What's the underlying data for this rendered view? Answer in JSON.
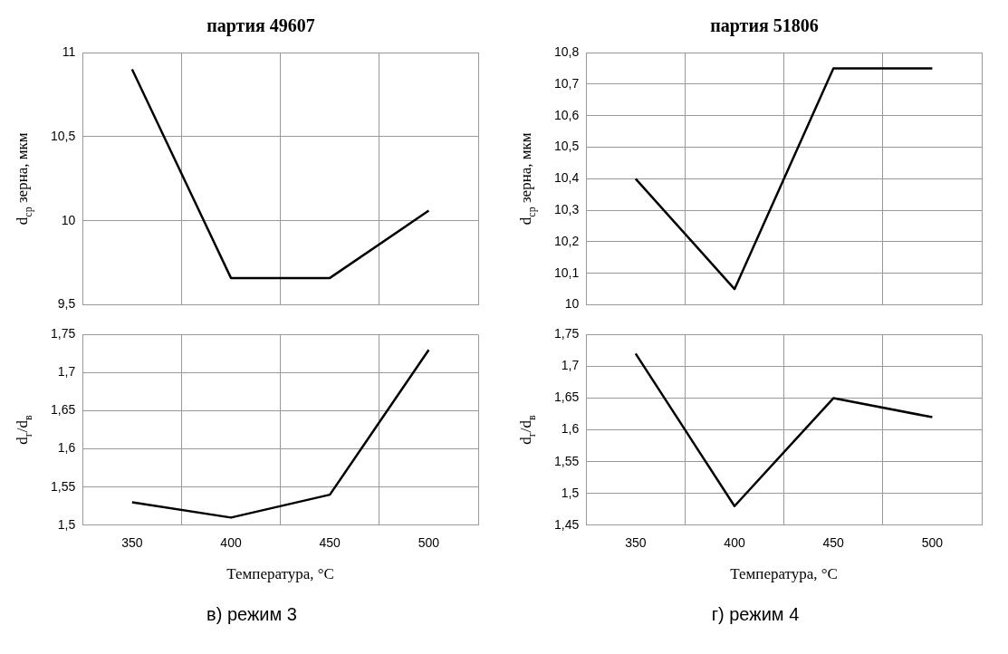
{
  "chart_data": [
    {
      "type": "line",
      "title": "партия 49607",
      "ylabel": "d$_{ср}$ зерна, мкм",
      "categories": [
        "350",
        "400",
        "450",
        "500"
      ],
      "series": [
        {
          "color": "#000000",
          "values": [
            10.9,
            9.66,
            9.66,
            10.06
          ]
        }
      ],
      "ylim": [
        9.5,
        11
      ],
      "yticks": [
        {
          "value": 9.5,
          "label": "9,5"
        },
        {
          "value": 10,
          "label": "10"
        },
        {
          "value": 10.5,
          "label": "10,5"
        },
        {
          "value": 11,
          "label": "11"
        }
      ],
      "grid": true,
      "tick_labels": "y"
    },
    {
      "type": "line",
      "title": "партия 51806",
      "ylabel": "d$_{ср}$ зерна, мкм",
      "categories": [
        "350",
        "400",
        "450",
        "500"
      ],
      "series": [
        {
          "color": "#000000",
          "values": [
            10.4,
            10.05,
            10.75,
            10.75
          ]
        }
      ],
      "ylim": [
        10,
        10.8
      ],
      "yticks": [
        {
          "value": 10,
          "label": "10"
        },
        {
          "value": 10.1,
          "label": "10,1"
        },
        {
          "value": 10.2,
          "label": "10,2"
        },
        {
          "value": 10.3,
          "label": "10,3"
        },
        {
          "value": 10.4,
          "label": "10,4"
        },
        {
          "value": 10.5,
          "label": "10,5"
        },
        {
          "value": 10.6,
          "label": "10,6"
        },
        {
          "value": 10.7,
          "label": "10,7"
        },
        {
          "value": 10.8,
          "label": "10,8"
        }
      ],
      "grid": true,
      "tick_labels": "y"
    },
    {
      "type": "line",
      "xlabel": "Температура, °C",
      "ylabel": "d$_{г}$/d$_{в}$",
      "categories": [
        "350",
        "400",
        "450",
        "500"
      ],
      "series": [
        {
          "color": "#000000",
          "values": [
            1.53,
            1.51,
            1.54,
            1.73
          ]
        }
      ],
      "ylim": [
        1.5,
        1.75
      ],
      "yticks": [
        {
          "value": 1.5,
          "label": "1,5"
        },
        {
          "value": 1.55,
          "label": "1,55"
        },
        {
          "value": 1.6,
          "label": "1,6"
        },
        {
          "value": 1.65,
          "label": "1,65"
        },
        {
          "value": 1.7,
          "label": "1,7"
        },
        {
          "value": 1.75,
          "label": "1,75"
        }
      ],
      "grid": true,
      "annotations": [
        "в) режим 3"
      ]
    },
    {
      "type": "line",
      "xlabel": "Температура, °C",
      "ylabel": "d$_{г}$/d$_{в}$",
      "categories": [
        "350",
        "400",
        "450",
        "500"
      ],
      "series": [
        {
          "color": "#000000",
          "values": [
            1.72,
            1.48,
            1.65,
            1.62
          ]
        }
      ],
      "ylim": [
        1.45,
        1.75
      ],
      "yticks": [
        {
          "value": 1.45,
          "label": "1,45"
        },
        {
          "value": 1.5,
          "label": "1,5"
        },
        {
          "value": 1.55,
          "label": "1,55"
        },
        {
          "value": 1.6,
          "label": "1,6"
        },
        {
          "value": 1.65,
          "label": "1,65"
        },
        {
          "value": 1.7,
          "label": "1,7"
        },
        {
          "value": 1.75,
          "label": "1,75"
        }
      ],
      "grid": true,
      "annotations": [
        "г) режим 4"
      ]
    }
  ]
}
